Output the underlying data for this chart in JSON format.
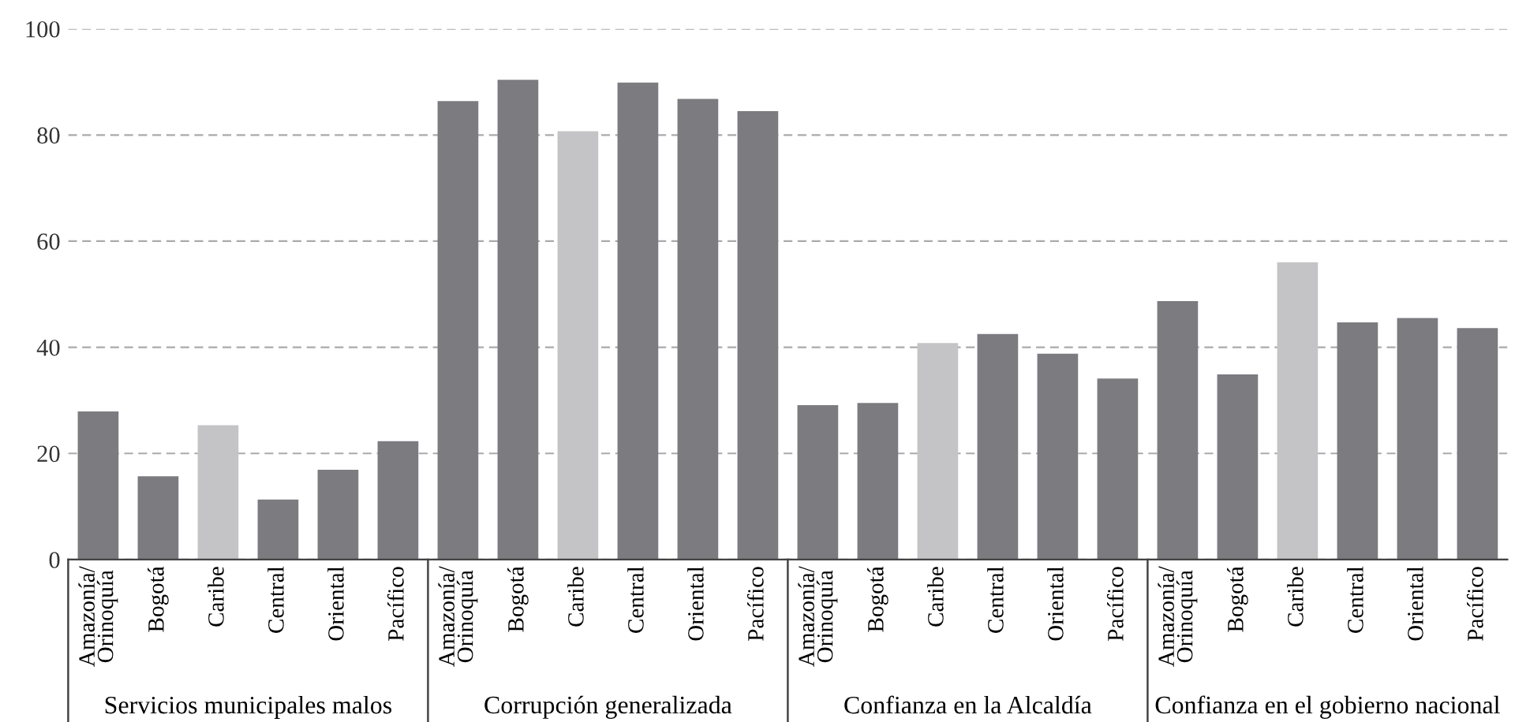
{
  "chart_data": {
    "type": "bar",
    "categories": [
      "Amazonía/\nOrinoquía",
      "Bogotá",
      "Caribe",
      "Central",
      "Oriental",
      "Pacífico",
      "Amazonía/\nOrinoquía",
      "Bogotá",
      "Caribe",
      "Central",
      "Oriental",
      "Pacífico",
      "Amazonía/\nOrinoquía",
      "Bogotá",
      "Caribe",
      "Central",
      "Oriental",
      "Pacífico",
      "Amazonía/\nOrinoquía",
      "Bogotá",
      "Caribe",
      "Central",
      "Oriental",
      "Pacífico"
    ],
    "values": [
      27.9,
      15.7,
      25.3,
      11.3,
      16.9,
      22.3,
      86.4,
      90.4,
      80.7,
      89.9,
      86.8,
      84.5,
      29.1,
      29.5,
      40.8,
      42.5,
      38.8,
      34.1,
      48.7,
      34.9,
      56.0,
      44.7,
      45.5,
      43.6
    ],
    "colors": [
      "#7b7b80",
      "#7b7b80",
      "#c4c4c6",
      "#7b7b80",
      "#7b7b80",
      "#7b7b80",
      "#7b7b80",
      "#7b7b80",
      "#c4c4c6",
      "#7b7b80",
      "#7b7b80",
      "#7b7b80",
      "#7b7b80",
      "#7b7b80",
      "#c4c4c6",
      "#7b7b80",
      "#7b7b80",
      "#7b7b80",
      "#7b7b80",
      "#7b7b80",
      "#c4c4c6",
      "#7b7b80",
      "#7b7b80",
      "#7b7b80"
    ],
    "annotations": [
      "Servicios municipales malos",
      "Corrupción generalizada",
      "Confianza en la Alcaldía",
      "Confianza en el gobierno nacional"
    ],
    "ylim": [
      0,
      100
    ],
    "yticks": [
      0,
      20,
      40,
      60,
      80,
      100
    ],
    "grid": "y",
    "legend": false
  }
}
